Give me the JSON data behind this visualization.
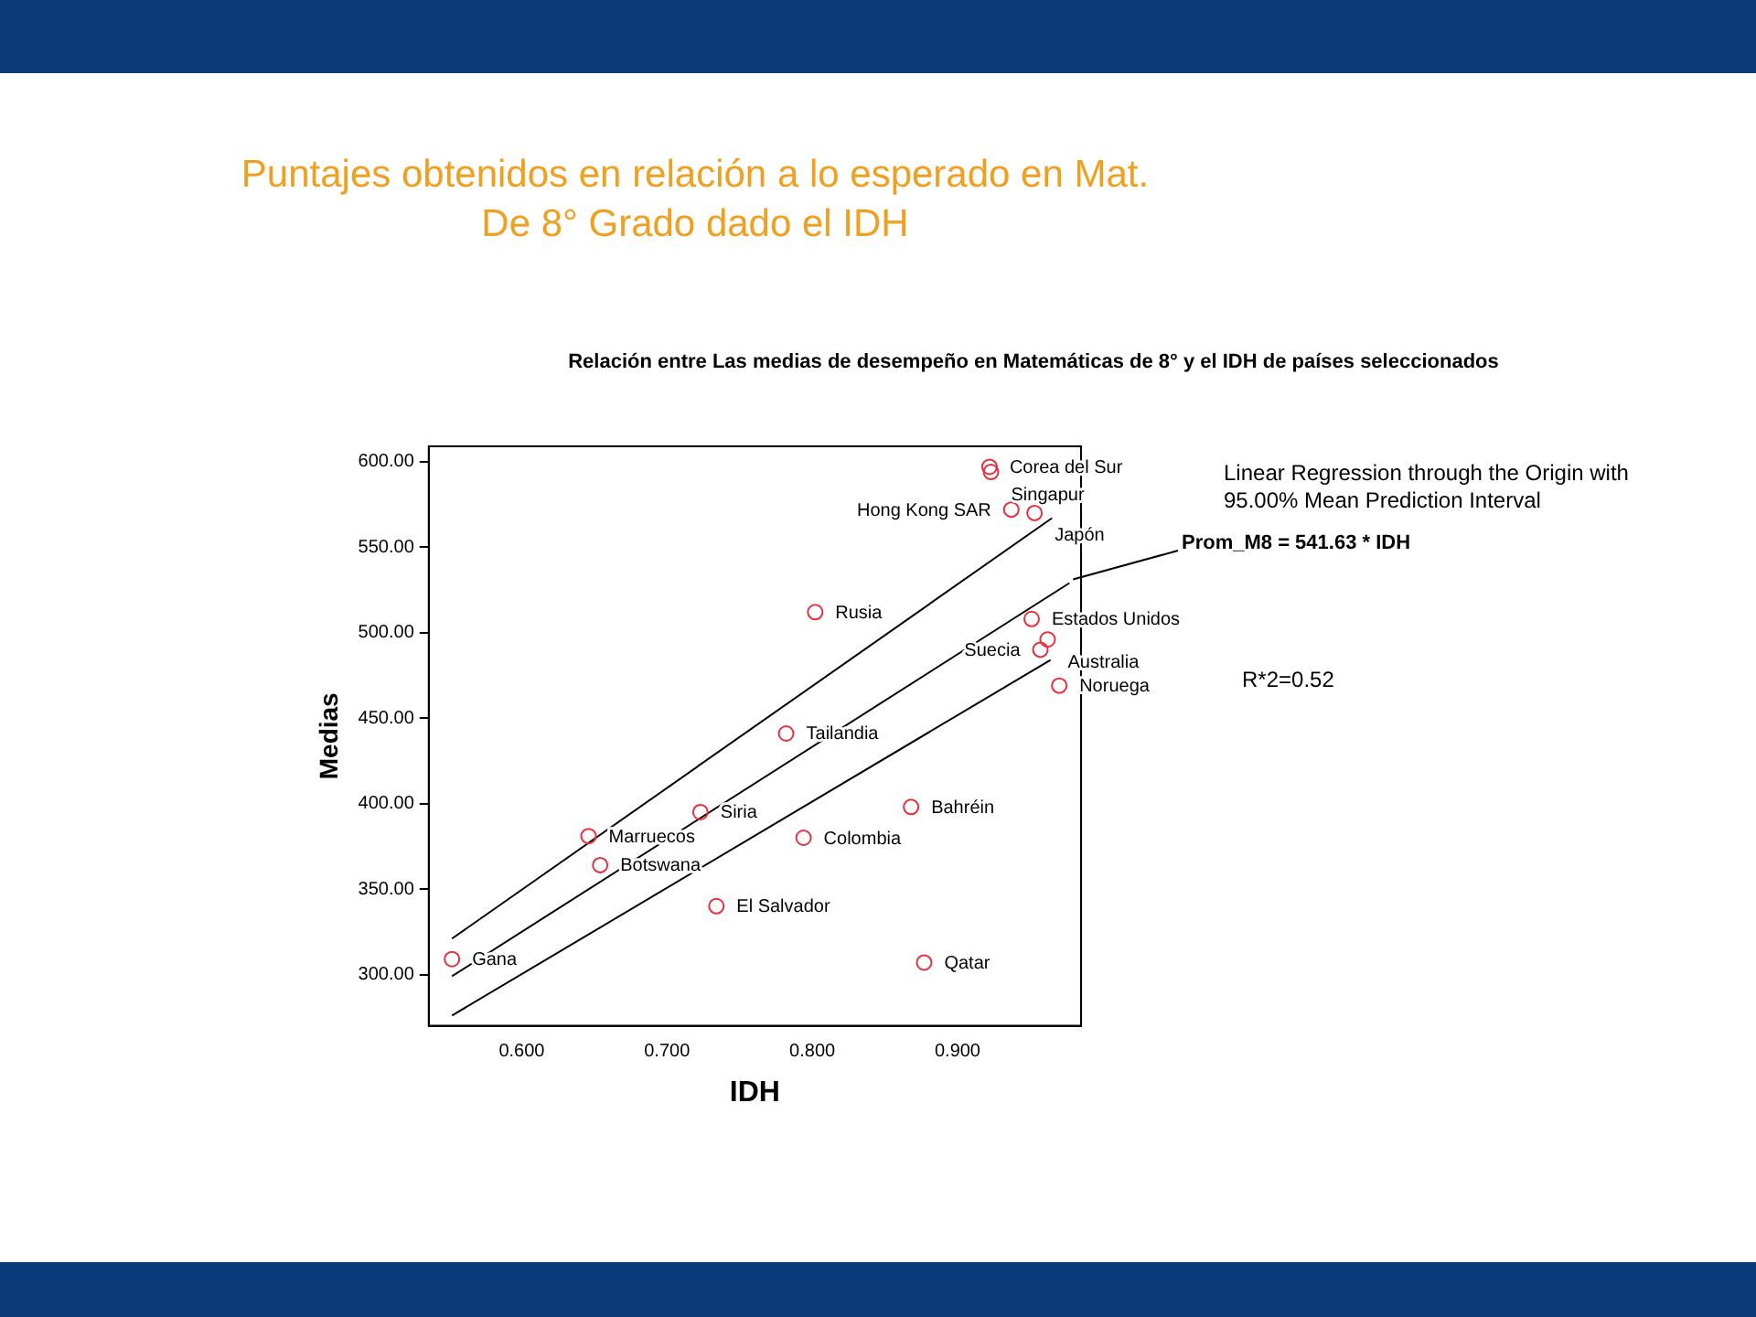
{
  "chart_data": {
    "type": "scatter",
    "title": "Puntajes obtenidos en relación a lo esperado en Mat. De 8° Grado dado el IDH",
    "subtitle": "Relación entre Las medias de desempeño en Matemáticas de 8° y el IDH de países seleccionados",
    "xlabel": "IDH",
    "ylabel": "Medias",
    "xlim": [
      0.536,
      0.985
    ],
    "ylim": [
      270,
      609
    ],
    "xticks": [
      {
        "value": 0.6,
        "label": "0.600"
      },
      {
        "value": 0.7,
        "label": "0.700"
      },
      {
        "value": 0.8,
        "label": "0.800"
      },
      {
        "value": 0.9,
        "label": "0.900"
      }
    ],
    "yticks": [
      {
        "value": 300,
        "label": "300.00"
      },
      {
        "value": 350,
        "label": "350.00"
      },
      {
        "value": 400,
        "label": "400.00"
      },
      {
        "value": 450,
        "label": "450.00"
      },
      {
        "value": 500,
        "label": "500.00"
      },
      {
        "value": 550,
        "label": "550.00"
      },
      {
        "value": 600,
        "label": "600.00"
      }
    ],
    "grid": false,
    "legend": false,
    "marker": "circle",
    "series": [
      {
        "type": "scatter",
        "color": "#e8303c",
        "x": [
          0.922,
          0.923,
          0.953,
          0.937,
          0.951,
          0.962,
          0.957,
          0.97,
          0.802,
          0.782,
          0.723,
          0.646,
          0.654,
          0.552,
          0.734,
          0.794,
          0.868,
          0.877
        ],
        "values": [
          597,
          594,
          570,
          572,
          508,
          496,
          490,
          469,
          512,
          441,
          395,
          381,
          364,
          309,
          340,
          380,
          398,
          307
        ]
      },
      {
        "type": "line",
        "color": "#000000",
        "marker": "none",
        "x": [
          0.552,
          0.965
        ],
        "values": [
          321,
          567
        ]
      },
      {
        "type": "line",
        "color": "#000000",
        "marker": "none",
        "x": [
          0.552,
          0.977
        ],
        "values": [
          299,
          529
        ]
      },
      {
        "type": "line",
        "color": "#000000",
        "marker": "none",
        "x": [
          0.552,
          0.964
        ],
        "values": [
          276,
          484
        ]
      }
    ],
    "annotations": [
      {
        "text": "Corea del Sur",
        "x": 0.922,
        "y": 597
      },
      {
        "text": "Singapur",
        "x": 0.923,
        "y": 594
      },
      {
        "text": "Japón",
        "x": 0.953,
        "y": 570
      },
      {
        "text": "Hong Kong SAR",
        "x": 0.937,
        "y": 572
      },
      {
        "text": "Estados Unidos",
        "x": 0.951,
        "y": 508
      },
      {
        "text": "Australia",
        "x": 0.962,
        "y": 496
      },
      {
        "text": "Suecia",
        "x": 0.957,
        "y": 490
      },
      {
        "text": "Noruega",
        "x": 0.97,
        "y": 469
      },
      {
        "text": "Rusia",
        "x": 0.802,
        "y": 512
      },
      {
        "text": "Tailandia",
        "x": 0.782,
        "y": 441
      },
      {
        "text": "Siria",
        "x": 0.723,
        "y": 395
      },
      {
        "text": "Marruecos",
        "x": 0.646,
        "y": 381
      },
      {
        "text": "Botswana",
        "x": 0.654,
        "y": 364
      },
      {
        "text": "Gana",
        "x": 0.552,
        "y": 309
      },
      {
        "text": "El Salvador",
        "x": 0.734,
        "y": 340
      },
      {
        "text": "Colombia",
        "x": 0.794,
        "y": 380
      },
      {
        "text": "Bahréin",
        "x": 0.868,
        "y": 398
      },
      {
        "text": "Qatar",
        "x": 0.877,
        "y": 307
      },
      {
        "text": "Prom_M8 = 541.63 * IDH",
        "x": 0.977,
        "y": 529
      },
      "Linear Regression through the Origin with\n95.00% Mean Prediction Interval",
      "R*2=0.52"
    ]
  }
}
